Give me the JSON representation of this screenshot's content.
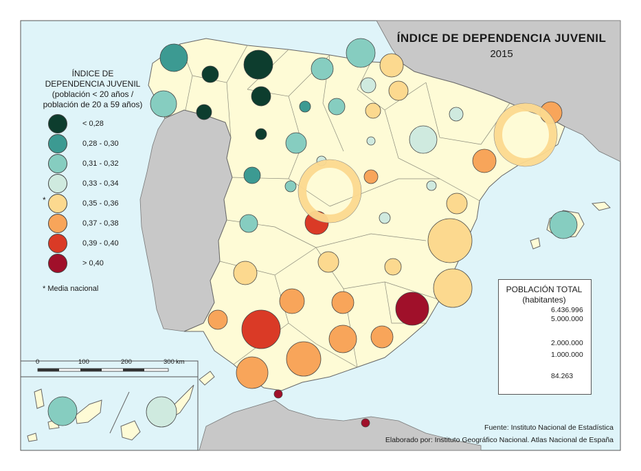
{
  "title": "ÍNDICE DE DEPENDENCIA JUVENIL",
  "year": "2015",
  "legend": {
    "title_line1": "ÍNDICE DE",
    "title_line2": "DEPENDENCIA JUVENIL",
    "title_line3": "(población < 20 años /",
    "title_line4": "población de 20 a 59 años)",
    "classes": [
      {
        "label": "< 0,28",
        "color": "#0d3d2e"
      },
      {
        "label": "0,28 - 0,30",
        "color": "#3c9a92"
      },
      {
        "label": "0,31 - 0,32",
        "color": "#86cdc0"
      },
      {
        "label": "0,33 - 0,34",
        "color": "#cfeadf"
      },
      {
        "label": "0,35 - 0,36",
        "color": "#fcd98f"
      },
      {
        "label": "0,37 - 0,38",
        "color": "#f8a55a"
      },
      {
        "label": "0,39 - 0,40",
        "color": "#da3a26"
      },
      {
        "label": "> 0,40",
        "color": "#a0102a"
      }
    ],
    "national_mark": "*",
    "national_note": "* Media nacional"
  },
  "population_legend": {
    "title_line1": "POBLACIÓN TOTAL",
    "title_line2": "(habitantes)",
    "values": [
      {
        "label": "6.436.996",
        "population": 6436996
      },
      {
        "label": "5.000.000",
        "population": 5000000
      },
      {
        "label": "2.000.000",
        "population": 2000000
      },
      {
        "label": "1.000.000",
        "population": 1000000
      },
      {
        "label": "84.263",
        "population": 84263
      }
    ]
  },
  "scale_bar": {
    "ticks": [
      "0",
      "100",
      "200",
      "300"
    ],
    "unit": "km"
  },
  "source": "Fuente: Instituto Nacional de Estadística",
  "credit": "Elaborado por: Instituto Geográfico Nacional. Atlas Nacional de España",
  "colors": {
    "sea": "#dff4f9",
    "land_spain": "#fefbd6",
    "land_other": "#c8c8c8",
    "border": "#666666"
  }
}
